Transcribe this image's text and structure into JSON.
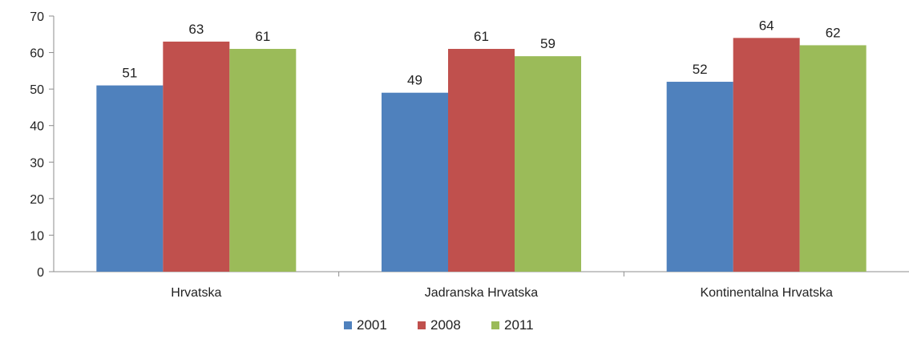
{
  "chart_data": {
    "type": "bar",
    "categories": [
      "Hrvatska",
      "Jadranska Hrvatska",
      "Kontinentalna Hrvatska"
    ],
    "series": [
      {
        "name": "2001",
        "values": [
          51,
          49,
          52
        ],
        "color": "#4f81bd"
      },
      {
        "name": "2008",
        "values": [
          63,
          61,
          64
        ],
        "color": "#c0504d"
      },
      {
        "name": "2011",
        "values": [
          61,
          59,
          62
        ],
        "color": "#9bbb59"
      }
    ],
    "title": "",
    "xlabel": "",
    "ylabel": "",
    "ylim": [
      0,
      70
    ],
    "yticks": [
      0,
      10,
      20,
      30,
      40,
      50,
      60,
      70
    ],
    "grid": false,
    "legend": "bottom",
    "data_labels": true
  }
}
